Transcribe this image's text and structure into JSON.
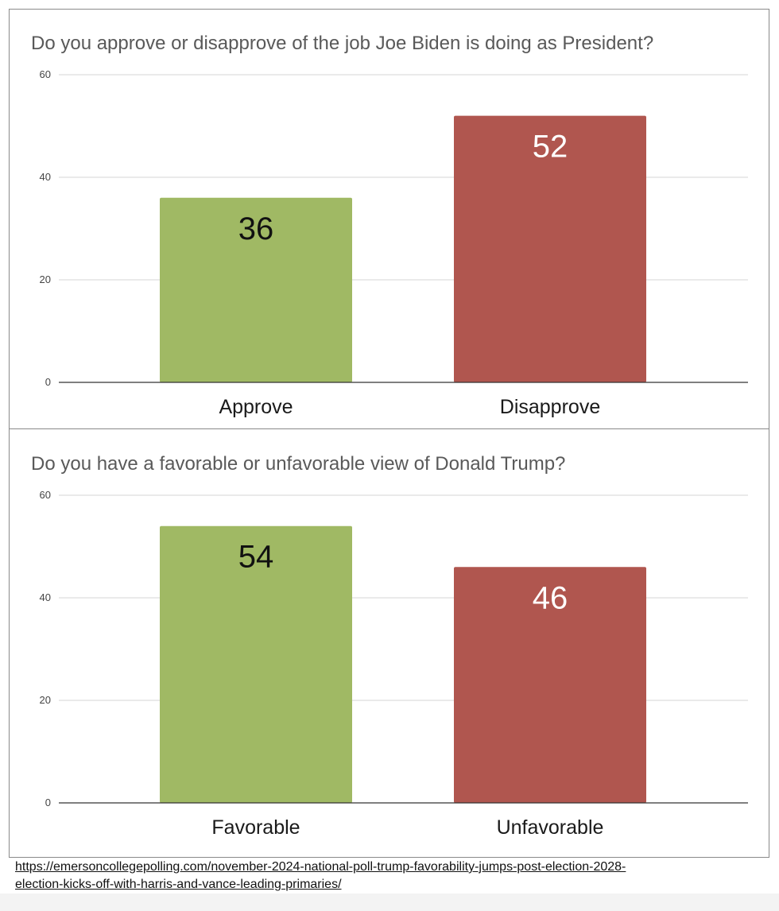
{
  "colors": {
    "positive": "#a0b964",
    "negative": "#b0564f",
    "gridline": "#dddddd",
    "axis": "#333333"
  },
  "chart_data": [
    {
      "type": "bar",
      "title": "Do you approve or disapprove of the job Joe Biden is doing as President?",
      "categories": [
        "Approve",
        "Disapprove"
      ],
      "values": [
        36,
        52
      ],
      "ylim": [
        0,
        60
      ],
      "yticks": [
        0,
        20,
        40,
        60
      ],
      "bar_colors": [
        "#a0b964",
        "#b0564f"
      ],
      "label_colors": [
        "#111111",
        "#ffffff"
      ],
      "grid": true,
      "legend": "none"
    },
    {
      "type": "bar",
      "title": "Do you have a favorable or unfavorable view of Donald Trump?",
      "categories": [
        "Favorable",
        "Unfavorable"
      ],
      "values": [
        54,
        46
      ],
      "ylim": [
        0,
        60
      ],
      "yticks": [
        0,
        20,
        40,
        60
      ],
      "bar_colors": [
        "#a0b964",
        "#b0564f"
      ],
      "label_colors": [
        "#111111",
        "#ffffff"
      ],
      "grid": true,
      "legend": "none"
    }
  ],
  "source": {
    "url_text": "https://emersoncollegepolling.com/november-2024-national-poll-trump-favorability-jumps-post-election-2028-election-kicks-off-with-harris-and-vance-leading-primaries/"
  }
}
